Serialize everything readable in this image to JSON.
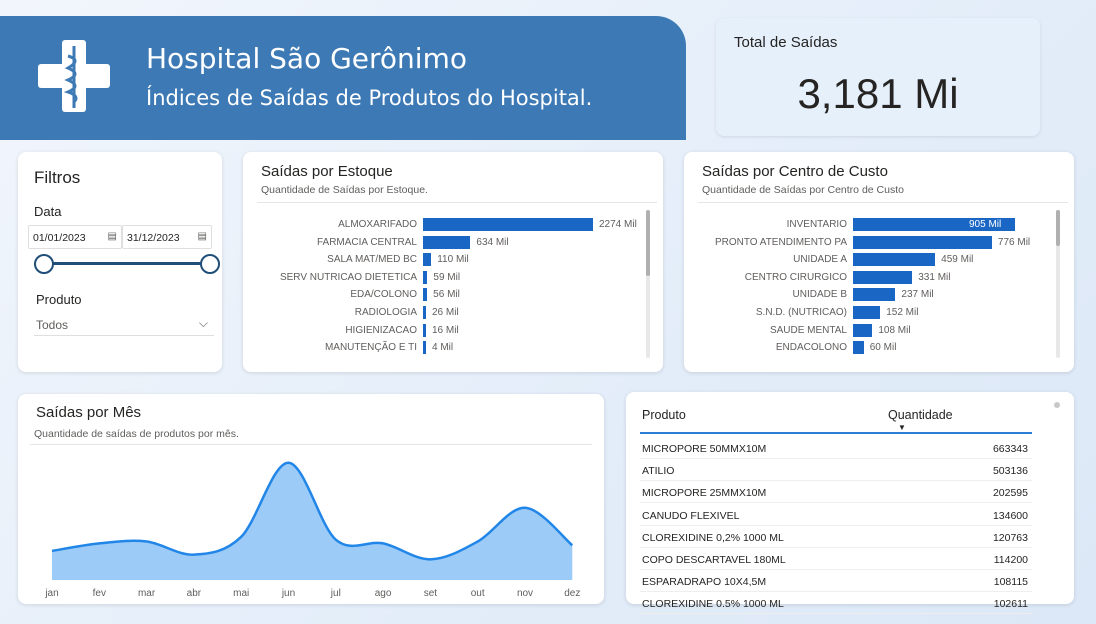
{
  "header": {
    "title": "Hospital São Gerônimo",
    "subtitle": "Índices de Saídas de Produtos do Hospital."
  },
  "kpi": {
    "label": "Total de Saídas",
    "value": "3,181 Mi"
  },
  "filters": {
    "title": "Filtros",
    "date_label": "Data",
    "date_start": "01/01/2023",
    "date_end": "31/12/2023",
    "product_label": "Produto",
    "product_value": "Todos"
  },
  "estoque": {
    "title": "Saídas por Estoque",
    "subtitle": "Quantidade de Saídas por Estoque."
  },
  "centro": {
    "title": "Saídas por Centro de Custo",
    "subtitle": "Quantidade de Saídas por Centro de Custo"
  },
  "mes": {
    "title": "Saídas por Mês",
    "subtitle": "Quantidade de saídas de produtos por mês."
  },
  "table": {
    "col_produto": "Produto",
    "col_quantidade": "Quantidade",
    "rows": [
      {
        "produto": "MICROPORE 50MMX10M",
        "quantidade": "663343"
      },
      {
        "produto": "ATILIO",
        "quantidade": "503136"
      },
      {
        "produto": "MICROPORE 25MMX10M",
        "quantidade": "202595"
      },
      {
        "produto": "CANUDO FLEXIVEL",
        "quantidade": "134600"
      },
      {
        "produto": "CLOREXIDINE 0,2% 1000 ML",
        "quantidade": "120763"
      },
      {
        "produto": "COPO DESCARTAVEL 180ML",
        "quantidade": "114200"
      },
      {
        "produto": "ESPARADRAPO 10X4,5M",
        "quantidade": "108115"
      },
      {
        "produto": "CLOREXIDINE 0.5% 1000 ML",
        "quantidade": "102611"
      }
    ]
  },
  "colors": {
    "banner": "#3d7ab5",
    "bar": "#1a66c4",
    "area": "#9ccbf7",
    "line": "#2186e8"
  },
  "chart_data": [
    {
      "type": "bar",
      "title": "Saídas por Estoque",
      "categories": [
        "ALMOXARIFADO",
        "FARMACIA CENTRAL",
        "SALA MAT/MED BC",
        "SERV NUTRICAO DIETETICA",
        "EDA/COLONO",
        "RADIOLOGIA",
        "HIGIENIZACAO",
        "MANUTENÇÃO E TI"
      ],
      "values": [
        2274,
        634,
        110,
        59,
        56,
        26,
        16,
        4
      ],
      "labels": [
        "2274 Mil",
        "634 Mil",
        "110 Mil",
        "59 Mil",
        "56 Mil",
        "26 Mil",
        "16 Mil",
        "4 Mil"
      ]
    },
    {
      "type": "bar",
      "title": "Saídas por Centro de Custo",
      "categories": [
        "INVENTARIO",
        "PRONTO ATENDIMENTO PA",
        "UNIDADE A",
        "CENTRO CIRURGICO",
        "UNIDADE B",
        "S.N.D. (NUTRICAO)",
        "SAUDE MENTAL",
        "ENDACOLONO"
      ],
      "values": [
        905,
        776,
        459,
        331,
        237,
        152,
        108,
        60
      ],
      "labels": [
        "905 Mil",
        "776 Mil",
        "459 Mil",
        "331 Mil",
        "237 Mil",
        "152 Mil",
        "108 Mil",
        "60 Mil"
      ]
    },
    {
      "type": "area",
      "title": "Saídas por Mês",
      "categories": [
        "jan",
        "fev",
        "mar",
        "abr",
        "mai",
        "jun",
        "jul",
        "ago",
        "set",
        "out",
        "nov",
        "dez"
      ],
      "values": [
        155,
        195,
        205,
        135,
        230,
        625,
        215,
        195,
        110,
        205,
        385,
        185
      ]
    }
  ]
}
